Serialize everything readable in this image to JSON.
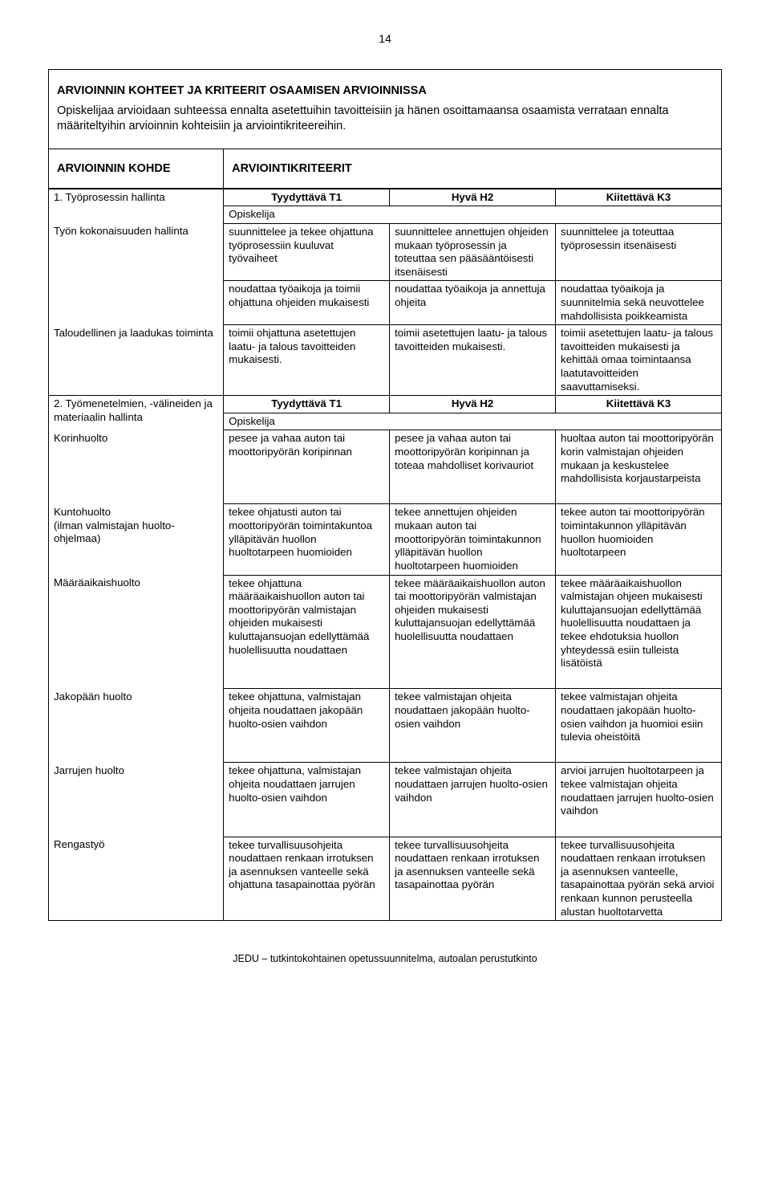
{
  "page_number": "14",
  "intro": {
    "title": "ARVIOINNIN KOHTEET JA KRITEERIT OSAAMISEN ARVIOINNISSA",
    "body": "Opiskelijaa arvioidaan suhteessa ennalta asetettuihin tavoitteisiin ja hänen osoittamaansa osaamista verrataan ennalta määriteltyihin arvioinnin kohteisiin ja arviointikriteereihin."
  },
  "header2": {
    "left": "ARVIOINNIN KOHDE",
    "right": "ARVIOINTIKRITEERIT"
  },
  "levels": {
    "t1": "Tyydyttävä T1",
    "h2": "Hyvä H2",
    "k3": "Kiitettävä K3"
  },
  "opiskelija": "Opiskelija",
  "section1": {
    "title": "1. Työprosessin hallinta",
    "row_a": {
      "label": "Työn kokonaisuuden hallinta",
      "t1": "suunnittelee ja tekee ohjattuna työprosessiin kuuluvat työvaiheet",
      "h2": "suunnittelee annettujen ohjeiden mukaan työprosessin ja toteuttaa sen pääsääntöisesti itsenäisesti",
      "k3": "suunnittelee ja toteuttaa työprosessin itsenäisesti"
    },
    "row_b": {
      "t1": "noudattaa työaikoja ja toimii ohjattuna ohjeiden mukaisesti",
      "h2": "noudattaa työaikoja ja annettuja ohjeita",
      "k3": "noudattaa työaikoja ja suunnitelmia sekä neuvottelee mahdollisista poikkeamista"
    },
    "row_c": {
      "label": "Taloudellinen ja laadukas toiminta",
      "t1": "toimii ohjattuna asetettujen laatu- ja talous tavoitteiden mukaisesti.",
      "h2": "toimii asetettujen laatu- ja talous tavoitteiden mukaisesti.",
      "k3": "toimii asetettujen laatu- ja talous tavoitteiden mukaisesti ja kehittää omaa toimintaansa laatutavoitteiden saavuttamiseksi."
    }
  },
  "section2": {
    "title": "2. Työmenetelmien, -välineiden ja materiaalin hallinta",
    "rows": [
      {
        "label": "Korinhuolto",
        "t1": "pesee ja vahaa auton tai moottoripyörän koripinnan",
        "h2": "pesee ja vahaa auton tai moottoripyörän koripinnan ja toteaa mahdolliset korivauriot",
        "k3": "huoltaa auton tai moottoripyörän korin valmistajan ohjeiden mukaan ja keskustelee mahdollisista korjaustarpeista"
      },
      {
        "label": "Kuntohuolto\n(ilman valmistajan huolto-ohjelmaa)",
        "t1": "tekee ohjatusti auton tai moottoripyörän toimintakuntoa ylläpitävän huollon huoltotarpeen huomioiden",
        "h2": "tekee annettujen ohjeiden mukaan auton tai moottoripyörän toimintakunnon ylläpitävän huollon huoltotarpeen huomioiden",
        "k3": "tekee auton tai moottoripyörän toimintakunnon ylläpitävän huollon huomioiden huoltotarpeen"
      },
      {
        "label": "Määräaikaishuolto",
        "t1": "tekee ohjattuna määräaikaishuollon auton tai moottoripyörän valmistajan ohjeiden mukaisesti kuluttajansuojan edellyttämää huolellisuutta noudattaen",
        "h2": "tekee määräaikaishuollon auton tai moottoripyörän valmistajan ohjeiden mukaisesti kuluttajansuojan edellyttämää huolellisuutta noudattaen",
        "k3": "tekee määräaikaishuollon valmistajan ohjeen mukaisesti kuluttajansuojan edellyttämää huolellisuutta noudattaen ja tekee ehdotuksia huollon yhteydessä esiin tulleista lisätöistä"
      },
      {
        "label": "Jakopään huolto",
        "t1": "tekee ohjattuna, valmistajan ohjeita noudattaen jakopään huolto-osien vaihdon",
        "h2": "tekee valmistajan ohjeita noudattaen jakopään huolto-osien vaihdon",
        "k3": "tekee valmistajan ohjeita noudattaen jakopään huolto-osien vaihdon ja huomioi esiin tulevia oheistöitä"
      },
      {
        "label": "Jarrujen huolto",
        "t1": "tekee ohjattuna, valmistajan ohjeita noudattaen jarrujen huolto-osien vaihdon",
        "h2": "tekee valmistajan ohjeita noudattaen jarrujen huolto-osien vaihdon",
        "k3": "arvioi jarrujen huoltotarpeen ja tekee valmistajan ohjeita noudattaen jarrujen huolto-osien vaihdon"
      },
      {
        "label": "Rengastyö",
        "t1": "tekee turvallisuusohjeita noudattaen renkaan irrotuksen ja asennuksen vanteelle sekä ohjattuna tasapainottaa pyörän",
        "h2": "tekee turvallisuusohjeita noudattaen renkaan irrotuksen ja asennuksen vanteelle sekä tasapainottaa pyörän",
        "k3": "tekee turvallisuusohjeita noudattaen renkaan irrotuksen ja asennuksen vanteelle, tasapainottaa pyörän sekä arvioi renkaan kunnon perusteella alustan huoltotarvetta"
      }
    ]
  },
  "footer": "JEDU – tutkintokohtainen opetussuunnitelma, autoalan perustutkinto"
}
